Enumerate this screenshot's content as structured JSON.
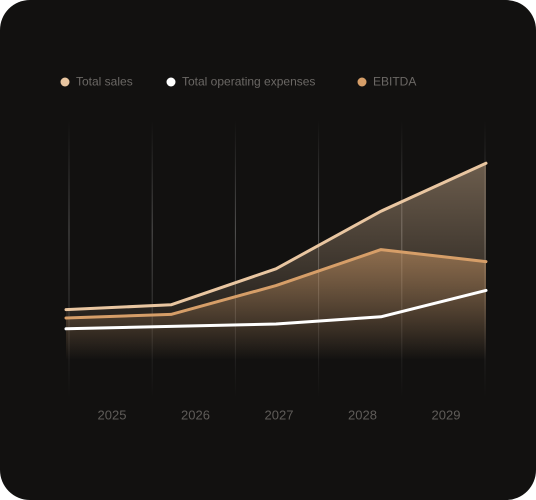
{
  "chart_data": {
    "type": "line",
    "categories": [
      "2025",
      "2026",
      "2027",
      "2028",
      "2029"
    ],
    "series": [
      {
        "name": "Total sales",
        "color": "#e9c6a1",
        "values": [
          21,
          23,
          38,
          62,
          82
        ]
      },
      {
        "name": "Total operating expenses",
        "color": "#ffffff",
        "values": [
          13,
          14,
          15,
          18,
          29
        ]
      },
      {
        "name": "EBITDA",
        "color": "#d69e68",
        "values": [
          17.5,
          19,
          31,
          46,
          41
        ]
      }
    ],
    "ylim": [
      0,
      100
    ]
  }
}
